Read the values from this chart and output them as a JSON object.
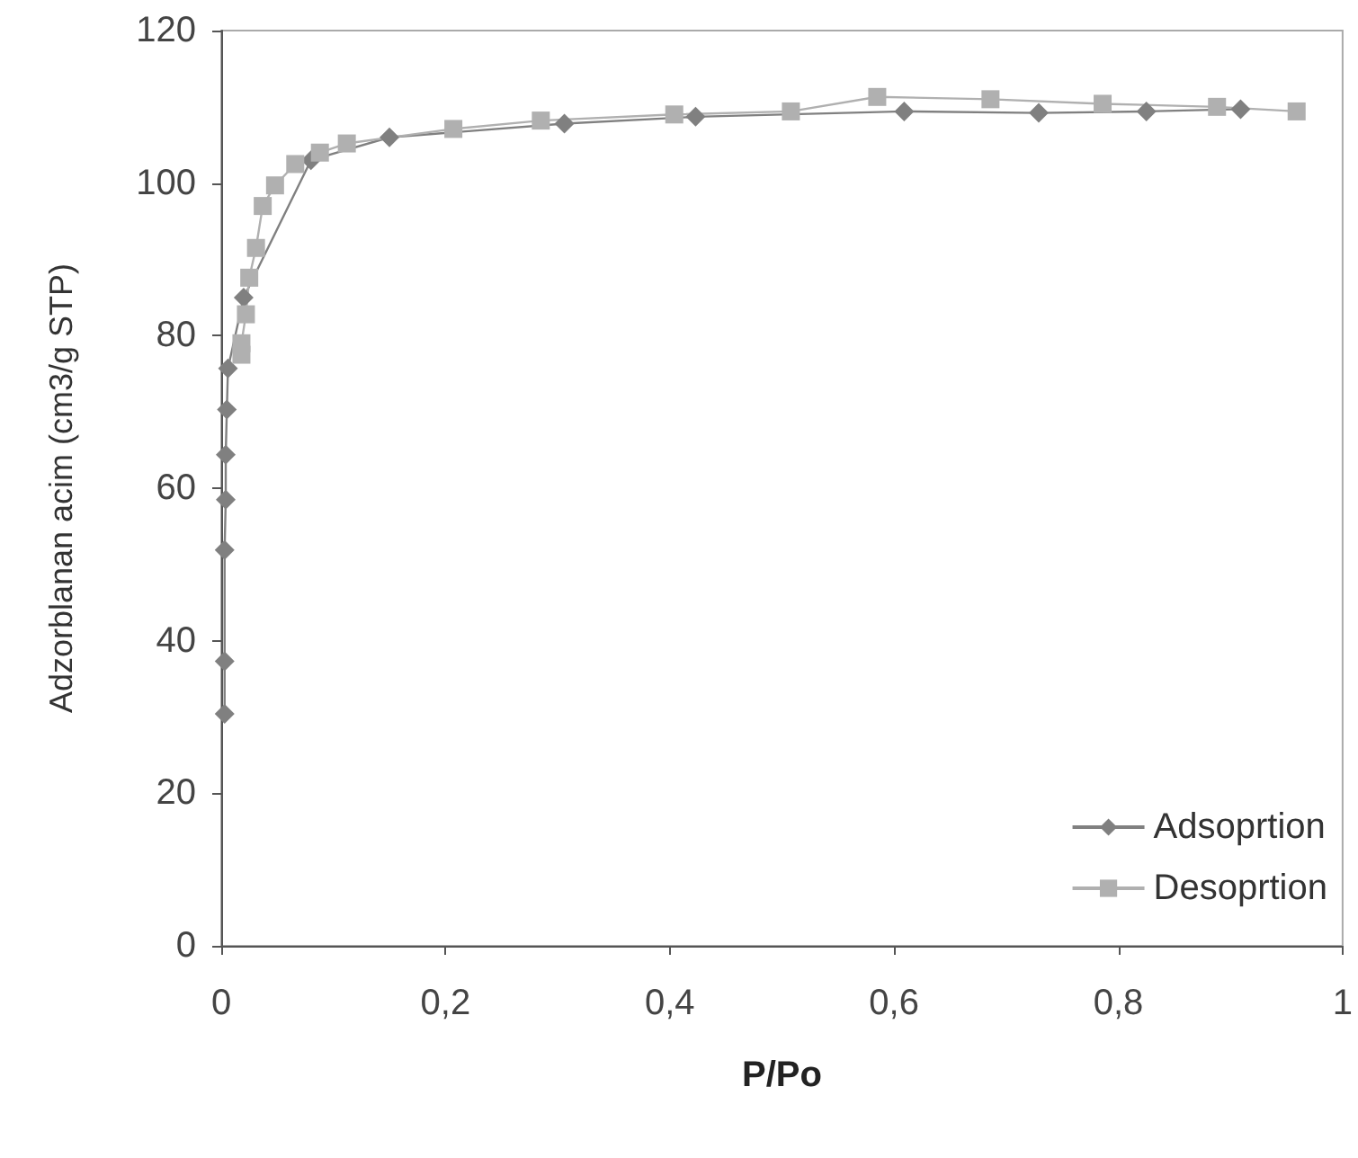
{
  "chart_data": {
    "type": "line",
    "xlabel": "P/Po",
    "ylabel": "Adzorblanan acim (cm3/g STP)",
    "xlim": [
      0,
      1
    ],
    "xticks": [
      0,
      {
        "value": 0.2,
        "label": "0,2"
      },
      {
        "value": 0.4,
        "label": "0,4"
      },
      {
        "value": 0.6,
        "label": "0,6"
      },
      {
        "value": 0.8,
        "label": "0,8"
      },
      1
    ],
    "ylim": [
      0,
      120
    ],
    "yticks": [
      0,
      20,
      40,
      60,
      80,
      100,
      120
    ],
    "grid": false,
    "legend": "bottom right",
    "series": [
      {
        "name": "Adsoprtion",
        "color": "#808080",
        "marker": "diamond",
        "x": [
          0.003,
          0.003,
          0.003,
          0.004,
          0.004,
          0.005,
          0.006,
          0.02,
          0.08,
          0.15,
          0.306,
          0.423,
          0.609,
          0.729,
          0.825,
          0.909
        ],
        "values": [
          30.4,
          37.3,
          51.9,
          58.5,
          64.4,
          70.3,
          75.7,
          85,
          103,
          106,
          107.8,
          108.7,
          109.4,
          109.2,
          109.4,
          109.7
        ]
      },
      {
        "name": "Desoprtion",
        "color": "#b0b0b0",
        "marker": "square",
        "x": [
          0.959,
          0.888,
          0.786,
          0.686,
          0.585,
          0.508,
          0.404,
          0.285,
          0.207,
          0.112,
          0.088,
          0.066,
          0.048,
          0.037,
          0.031,
          0.025,
          0.022,
          0.018,
          0.018
        ],
        "values": [
          109.4,
          110,
          110.4,
          111,
          111.3,
          109.4,
          109,
          108.2,
          107.1,
          105.2,
          104,
          102.5,
          99.7,
          97,
          91.5,
          87.6,
          82.8,
          79,
          77.5
        ]
      }
    ]
  }
}
